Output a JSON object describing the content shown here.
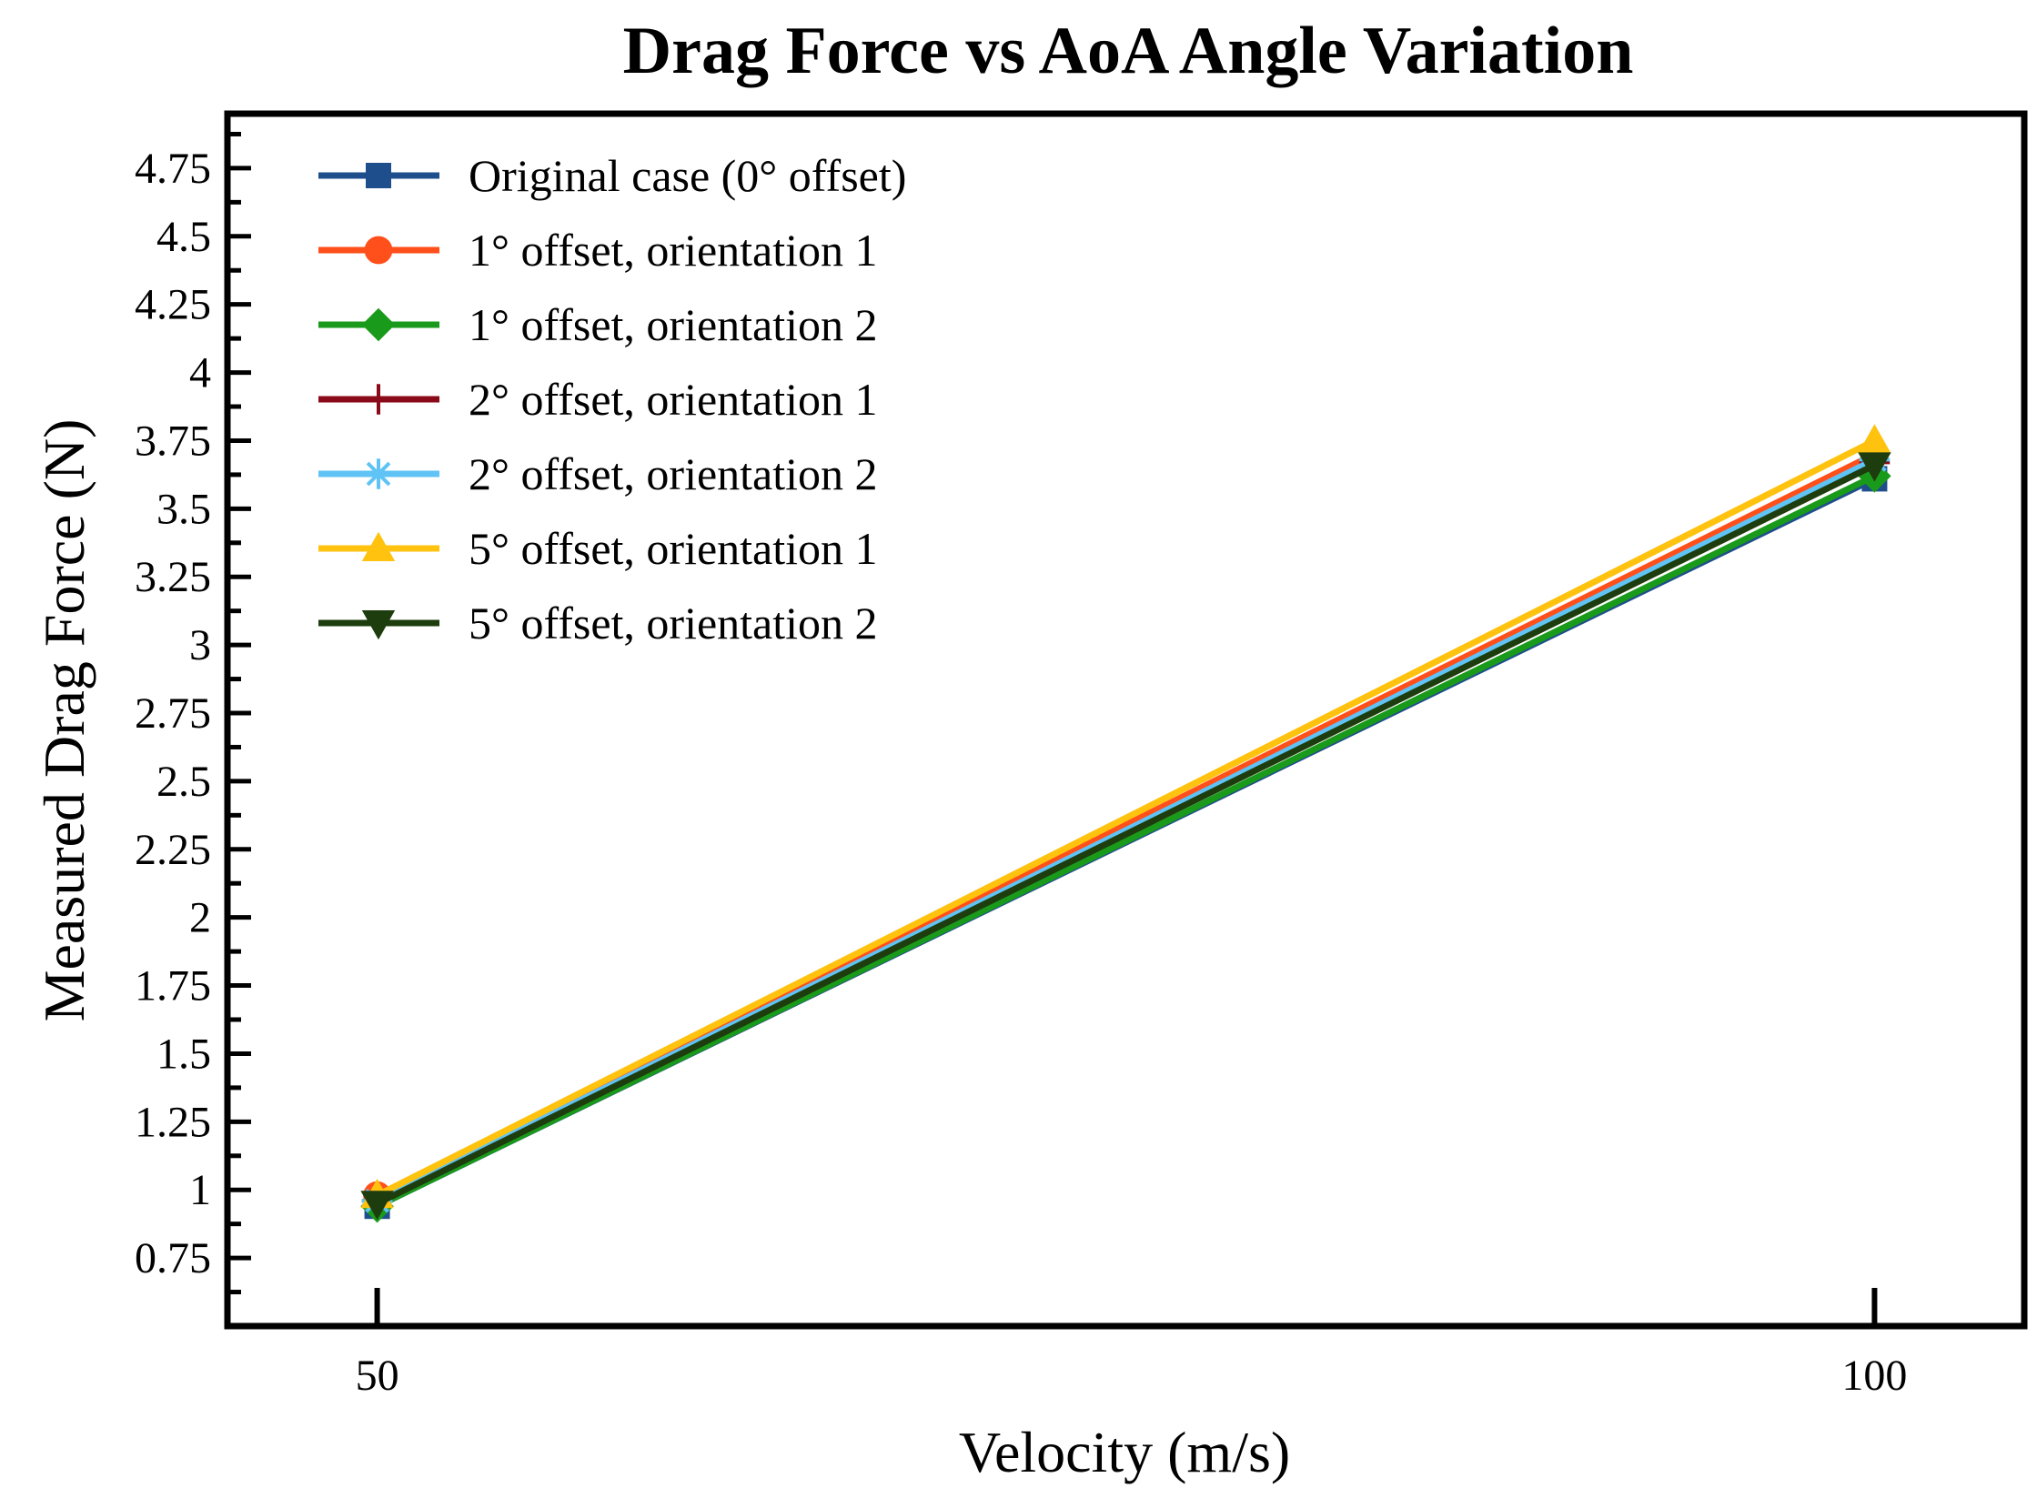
{
  "chart_data": {
    "type": "line",
    "title": "Drag Force vs AoA Angle Variation",
    "xlabel": "Velocity (m/s)",
    "ylabel": "Measured Drag Force (N)",
    "x": [
      50,
      100
    ],
    "x_ticks": [
      "50",
      "100"
    ],
    "xlim": [
      45,
      105
    ],
    "ylim": [
      0.5,
      4.95
    ],
    "y_ticks": [
      "0.75",
      "1",
      "1.25",
      "1.5",
      "1.75",
      "2",
      "2.25",
      "2.5",
      "2.75",
      "3",
      "3.25",
      "3.5",
      "3.75",
      "4",
      "4.25",
      "4.5",
      "4.75"
    ],
    "y_tick_values": [
      0.75,
      1,
      1.25,
      1.5,
      1.75,
      2,
      2.25,
      2.5,
      2.75,
      3,
      3.25,
      3.5,
      3.75,
      4,
      4.25,
      4.5,
      4.75
    ],
    "grid": false,
    "legend_position": "top-left",
    "series": [
      {
        "name": "Original case (0° offset)",
        "values": [
          0.94,
          3.61
        ],
        "color": "#1f4e8c",
        "marker": "square"
      },
      {
        "name": "1° offset, orientation 1",
        "values": [
          0.98,
          3.7
        ],
        "color": "#ff4f1a",
        "marker": "circle"
      },
      {
        "name": "1° offset, orientation 2",
        "values": [
          0.94,
          3.62
        ],
        "color": "#1a9a1a",
        "marker": "diamond"
      },
      {
        "name": "2° offset, orientation 1",
        "values": [
          0.96,
          3.67
        ],
        "color": "#8b0a1a",
        "marker": "plus"
      },
      {
        "name": "2° offset, orientation 2",
        "values": [
          0.96,
          3.68
        ],
        "color": "#5fc3f5",
        "marker": "asterisk"
      },
      {
        "name": "5° offset, orientation 1",
        "values": [
          0.98,
          3.75
        ],
        "color": "#ffc20e",
        "marker": "triangle-up"
      },
      {
        "name": "5° offset, orientation 2",
        "values": [
          0.95,
          3.66
        ],
        "color": "#1e3d0e",
        "marker": "triangle-down"
      }
    ]
  }
}
